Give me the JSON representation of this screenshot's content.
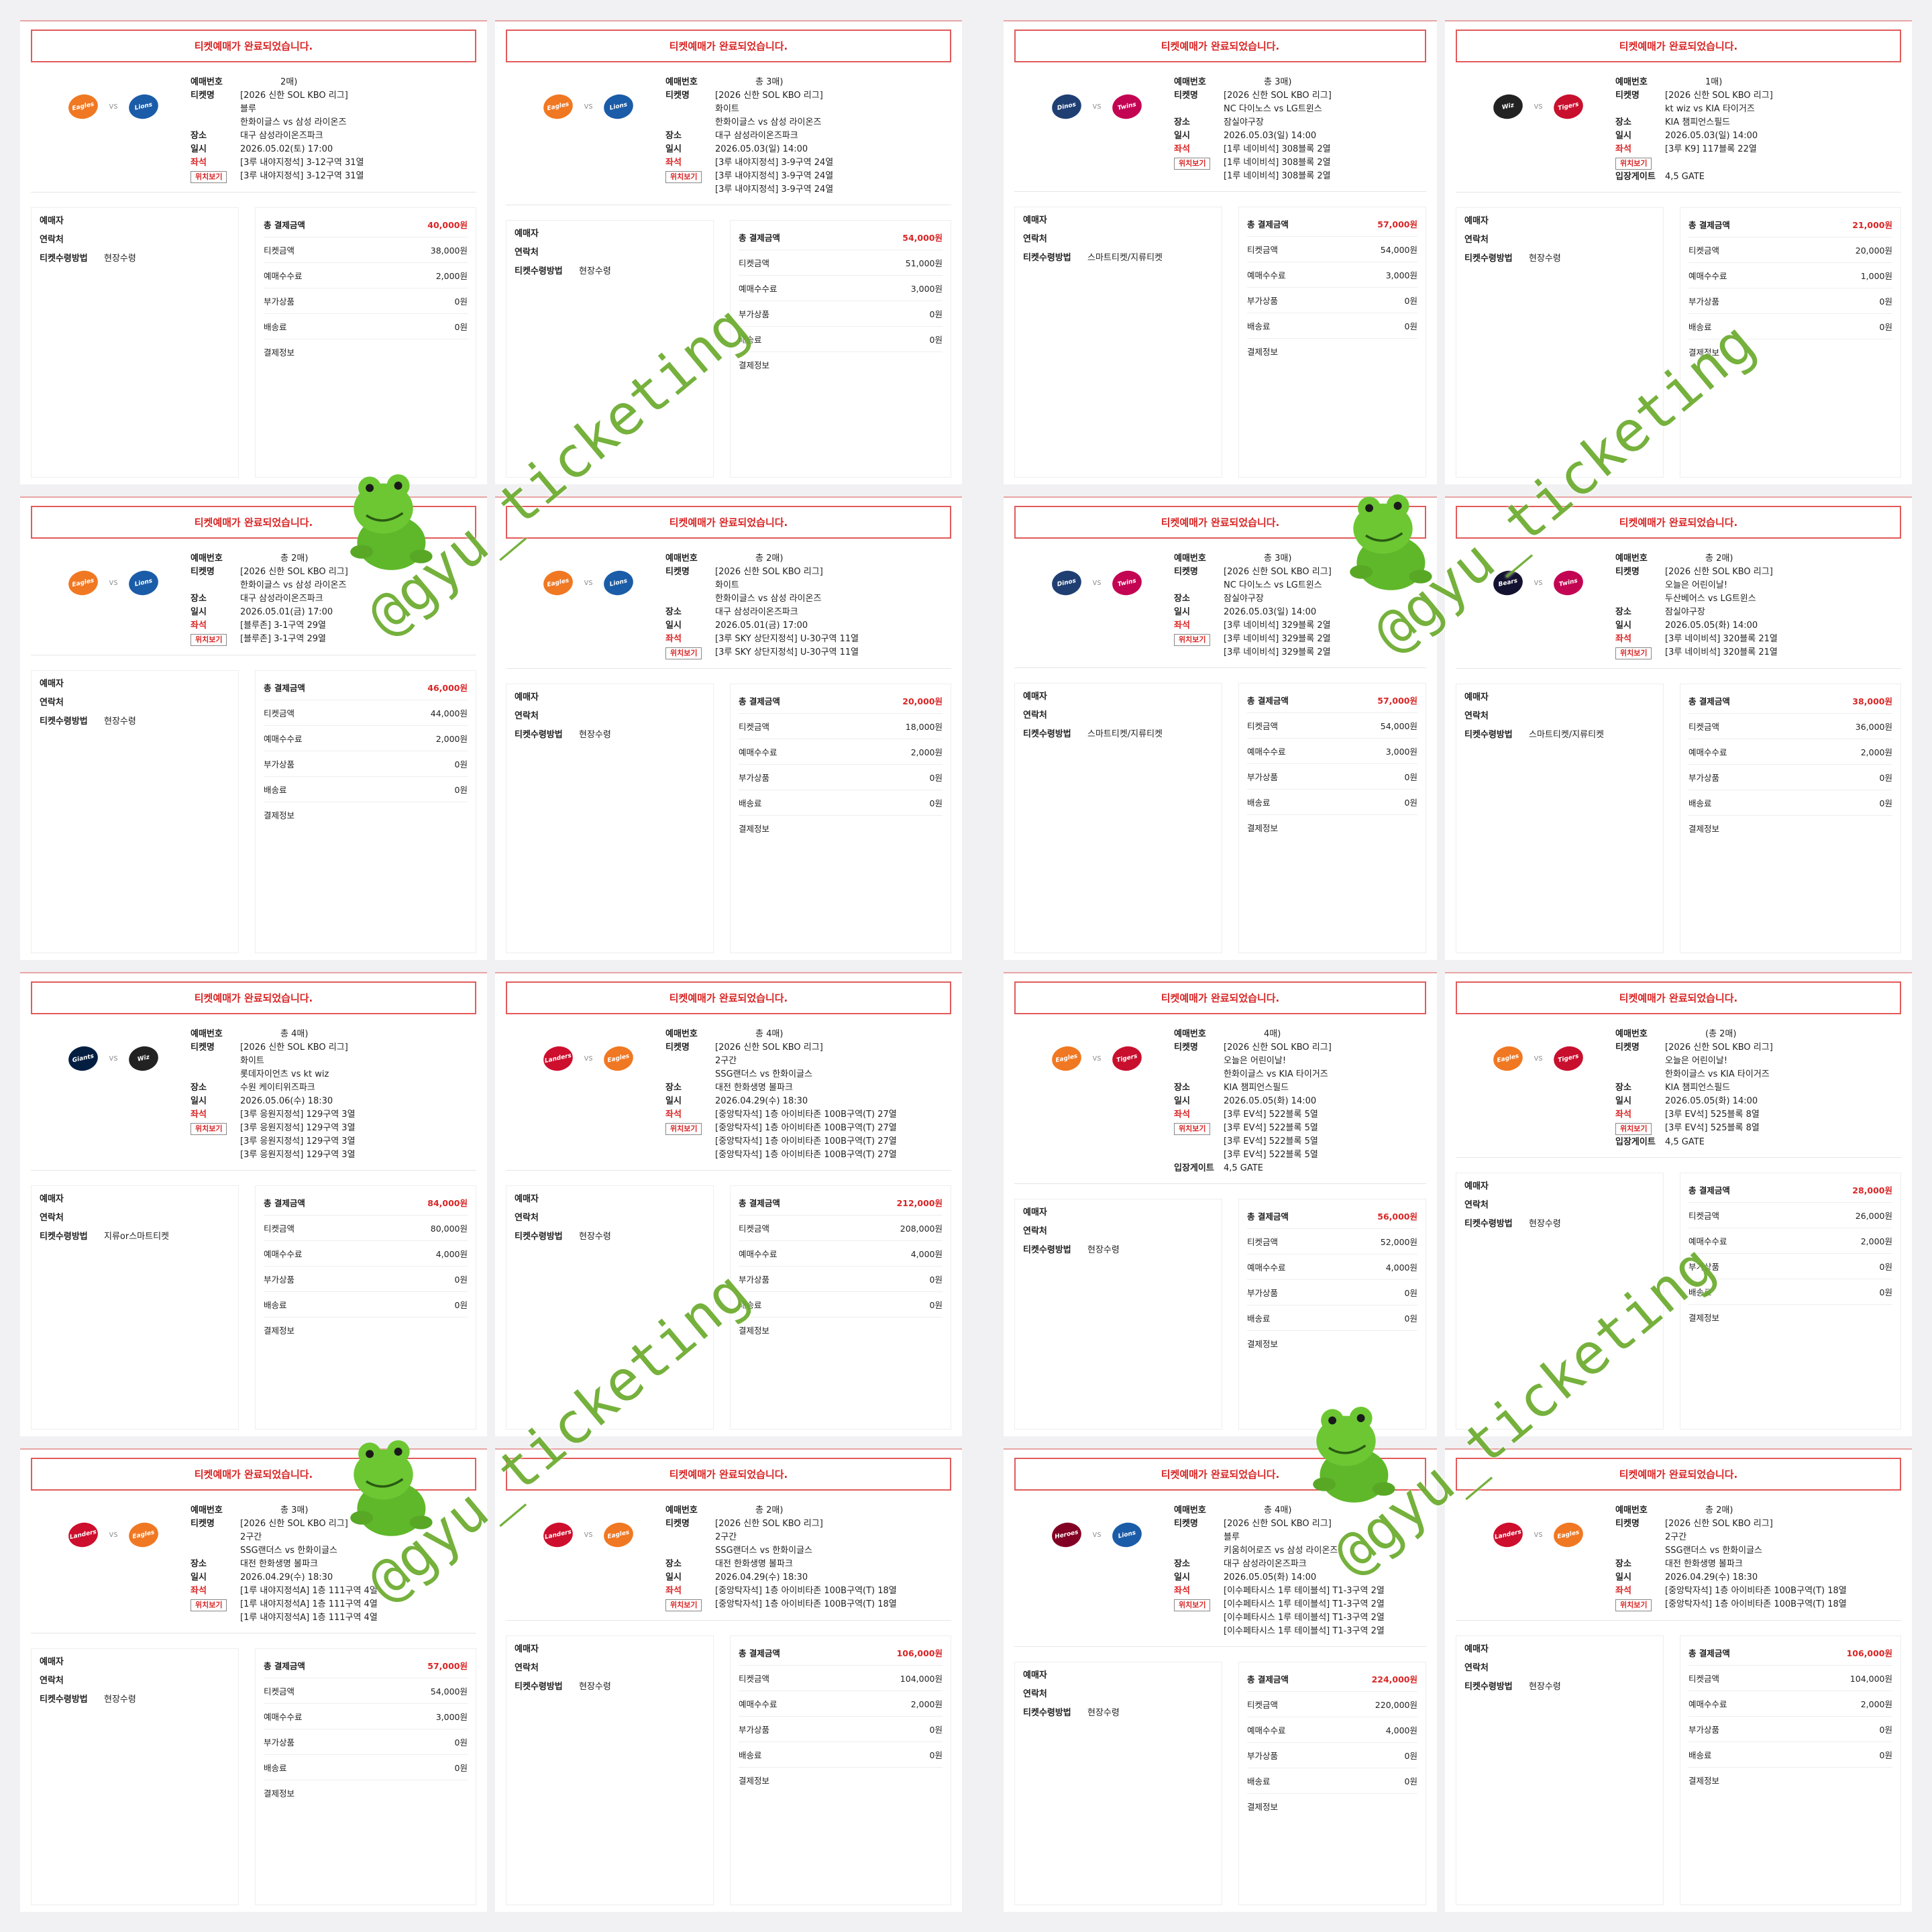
{
  "labels": {
    "banner": "티켓예매가 완료되었습니다.",
    "booking_no": "예매번호",
    "ticket_name": "티켓명",
    "venue": "장소",
    "datetime": "일시",
    "seat": "좌석",
    "locate": "위치보기",
    "gate": "입장게이트",
    "booker": "예매자",
    "contact": "연락처",
    "receive": "티켓수령방법",
    "total": "총 결제금액",
    "ticket_price": "티켓금액",
    "fee": "예매수수료",
    "addon": "부가상품",
    "shipping": "배송료",
    "payinfo": "결제정보",
    "vs": "vs"
  },
  "watermark": "@gyu_ticketing",
  "colors": {
    "accent": "#d92525",
    "watermark": "#6aab2c"
  },
  "tickets": [
    {
      "home": "Eagles",
      "away": "Lions",
      "home_color": "#f07822",
      "away_color": "#1a5ca8",
      "booking": "2매)",
      "title": [
        "[2026 신한 SOL KBO 리그]",
        "블루",
        "한화이글스 vs 삼성 라이온즈"
      ],
      "venue": "대구 삼성라이온즈파크",
      "datetime": "2026.05.02(토) 17:00",
      "seats": [
        "[3루 내야지정석] 3-12구역 31열",
        "[3루 내야지정석] 3-12구역 31열"
      ],
      "gate": "",
      "receive": "현장수령",
      "total": "40,000원",
      "ticket": "38,000원",
      "fee": "2,000원",
      "addon": "0원",
      "ship": "0원"
    },
    {
      "home": "Eagles",
      "away": "Lions",
      "home_color": "#f07822",
      "away_color": "#1a5ca8",
      "booking": "총 3매)",
      "title": [
        "[2026 신한 SOL KBO 리그]",
        "화이트",
        "한화이글스 vs 삼성 라이온즈"
      ],
      "venue": "대구 삼성라이온즈파크",
      "datetime": "2026.05.03(일) 14:00",
      "seats": [
        "[3루 내야지정석] 3-9구역 24열",
        "[3루 내야지정석] 3-9구역 24열",
        "[3루 내야지정석] 3-9구역 24열"
      ],
      "gate": "",
      "receive": "현장수령",
      "total": "54,000원",
      "ticket": "51,000원",
      "fee": "3,000원",
      "addon": "0원",
      "ship": "0원"
    },
    {
      "home": "Dinos",
      "away": "Twins",
      "home_color": "#1f3f73",
      "away_color": "#c30452",
      "booking": "총 3매)",
      "title": [
        "[2026 신한 SOL KBO 리그]",
        "NC 다이노스 vs LG트윈스"
      ],
      "venue": "잠실야구장",
      "datetime": "2026.05.03(일) 14:00",
      "seats": [
        "[1루 네이비석] 308블록 2열",
        "[1루 네이비석] 308블록 2열",
        "[1루 네이비석] 308블록 2열"
      ],
      "gate": "",
      "receive": "스마트티켓/지류티켓",
      "total": "57,000원",
      "ticket": "54,000원",
      "fee": "3,000원",
      "addon": "0원",
      "ship": "0원"
    },
    {
      "home": "Wiz",
      "away": "Tigers",
      "home_color": "#222222",
      "away_color": "#c8102e",
      "booking": "1매)",
      "title": [
        "[2026 신한 SOL KBO 리그]",
        "kt wiz vs KIA 타이거즈"
      ],
      "venue": "KIA 챔피언스필드",
      "datetime": "2026.05.03(일) 14:00",
      "seats": [
        "[3루 K9] 117블록 22열"
      ],
      "gate": "4,5 GATE",
      "receive": "현장수령",
      "total": "21,000원",
      "ticket": "20,000원",
      "fee": "1,000원",
      "addon": "0원",
      "ship": "0원"
    },
    {
      "home": "Eagles",
      "away": "Lions",
      "home_color": "#f07822",
      "away_color": "#1a5ca8",
      "booking": "총 2매)",
      "title": [
        "[2026 신한 SOL KBO 리그]",
        "한화이글스 vs 삼성 라이온즈"
      ],
      "venue": "대구 삼성라이온즈파크",
      "datetime": "2026.05.01(금) 17:00",
      "seats": [
        "[블루존] 3-1구역 29열",
        "[블루존] 3-1구역 29열"
      ],
      "gate": "",
      "receive": "현장수령",
      "total": "46,000원",
      "ticket": "44,000원",
      "fee": "2,000원",
      "addon": "0원",
      "ship": "0원"
    },
    {
      "home": "Eagles",
      "away": "Lions",
      "home_color": "#f07822",
      "away_color": "#1a5ca8",
      "booking": "총 2매)",
      "title": [
        "[2026 신한 SOL KBO 리그]",
        "화이트",
        "한화이글스 vs 삼성 라이온즈"
      ],
      "venue": "대구 삼성라이온즈파크",
      "datetime": "2026.05.01(금) 17:00",
      "seats": [
        "[3루 SKY 상단지정석] U-30구역 11열",
        "[3루 SKY 상단지정석] U-30구역 11열"
      ],
      "gate": "",
      "receive": "현장수령",
      "total": "20,000원",
      "ticket": "18,000원",
      "fee": "2,000원",
      "addon": "0원",
      "ship": "0원"
    },
    {
      "home": "Dinos",
      "away": "Twins",
      "home_color": "#1f3f73",
      "away_color": "#c30452",
      "booking": "총 3매)",
      "title": [
        "[2026 신한 SOL KBO 리그]",
        "NC 다이노스 vs LG트윈스"
      ],
      "venue": "잠실야구장",
      "datetime": "2026.05.03(일) 14:00",
      "seats": [
        "[3루 네이비석] 329블록 2열",
        "[3루 네이비석] 329블록 2열",
        "[3루 네이비석] 329블록 2열"
      ],
      "gate": "",
      "receive": "스마트티켓/지류티켓",
      "total": "57,000원",
      "ticket": "54,000원",
      "fee": "3,000원",
      "addon": "0원",
      "ship": "0원"
    },
    {
      "home": "Bears",
      "away": "Twins",
      "home_color": "#131230",
      "away_color": "#c30452",
      "booking": "총 2매)",
      "title": [
        "[2026 신한 SOL KBO 리그]",
        "오늘은 어린이날!",
        "두산베어스 vs LG트윈스"
      ],
      "venue": "잠실야구장",
      "datetime": "2026.05.05(화) 14:00",
      "seats": [
        "[3루 네이비석] 320블록 21열",
        "[3루 네이비석] 320블록 21열"
      ],
      "gate": "",
      "receive": "스마트티켓/지류티켓",
      "total": "38,000원",
      "ticket": "36,000원",
      "fee": "2,000원",
      "addon": "0원",
      "ship": "0원"
    },
    {
      "home": "Giants",
      "away": "Wiz",
      "home_color": "#041e42",
      "away_color": "#222222",
      "booking": "총 4매)",
      "title": [
        "[2026 신한 SOL KBO 리그]",
        "화이트",
        "롯데자이언츠 vs kt wiz"
      ],
      "venue": "수원 케이티위즈파크",
      "datetime": "2026.05.06(수) 18:30",
      "seats": [
        "[3루 응원지정석] 129구역 3열",
        "[3루 응원지정석] 129구역 3열",
        "[3루 응원지정석] 129구역 3열",
        "[3루 응원지정석] 129구역 3열"
      ],
      "gate": "",
      "receive": "지류or스마트티켓",
      "total": "84,000원",
      "ticket": "80,000원",
      "fee": "4,000원",
      "addon": "0원",
      "ship": "0원"
    },
    {
      "home": "Landers",
      "away": "Eagles",
      "home_color": "#ce0e2d",
      "away_color": "#f07822",
      "booking": "총 4매)",
      "title": [
        "[2026 신한 SOL KBO 리그]",
        "2구간",
        "SSG랜더스 vs 한화이글스"
      ],
      "venue": "대전 한화생명 볼파크",
      "datetime": "2026.04.29(수) 18:30",
      "seats": [
        "[중앙탁자석] 1층 아이비타존 100B구역(T) 27열",
        "[중앙탁자석] 1층 아이비타존 100B구역(T) 27열",
        "[중앙탁자석] 1층 아이비타존 100B구역(T) 27열",
        "[중앙탁자석] 1층 아이비타존 100B구역(T) 27열"
      ],
      "gate": "",
      "receive": "현장수령",
      "total": "212,000원",
      "ticket": "208,000원",
      "fee": "4,000원",
      "addon": "0원",
      "ship": "0원"
    },
    {
      "home": "Eagles",
      "away": "Tigers",
      "home_color": "#f07822",
      "away_color": "#c8102e",
      "booking": "4매)",
      "title": [
        "[2026 신한 SOL KBO 리그]",
        "오늘은 어린이날!",
        "한화이글스 vs KIA 타이거즈"
      ],
      "venue": "KIA 챔피언스필드",
      "datetime": "2026.05.05(화) 14:00",
      "seats": [
        "[3루 EV석] 522블록 5열",
        "[3루 EV석] 522블록 5열",
        "[3루 EV석] 522블록 5열",
        "[3루 EV석] 522블록 5열"
      ],
      "gate": "4,5 GATE",
      "receive": "현장수령",
      "total": "56,000원",
      "ticket": "52,000원",
      "fee": "4,000원",
      "addon": "0원",
      "ship": "0원"
    },
    {
      "home": "Eagles",
      "away": "Tigers",
      "home_color": "#f07822",
      "away_color": "#c8102e",
      "booking": "(총 2매)",
      "title": [
        "[2026 신한 SOL KBO 리그]",
        "오늘은 어린이날!",
        "한화이글스 vs KIA 타이거즈"
      ],
      "venue": "KIA 챔피언스필드",
      "datetime": "2026.05.05(화) 14:00",
      "seats": [
        "[3루 EV석] 525블록 8열",
        "[3루 EV석] 525블록 8열"
      ],
      "gate": "4,5 GATE",
      "receive": "현장수령",
      "total": "28,000원",
      "ticket": "26,000원",
      "fee": "2,000원",
      "addon": "0원",
      "ship": "0원"
    },
    {
      "home": "Landers",
      "away": "Eagles",
      "home_color": "#ce0e2d",
      "away_color": "#f07822",
      "booking": "총 3매)",
      "title": [
        "[2026 신한 SOL KBO 리그]",
        "2구간",
        "SSG랜더스 vs 한화이글스"
      ],
      "venue": "대전 한화생명 볼파크",
      "datetime": "2026.04.29(수) 18:30",
      "seats": [
        "[1루 내야지정석A] 1층 111구역 4열",
        "[1루 내야지정석A] 1층 111구역 4열",
        "[1루 내야지정석A] 1층 111구역 4열"
      ],
      "gate": "",
      "receive": "현장수령",
      "total": "57,000원",
      "ticket": "54,000원",
      "fee": "3,000원",
      "addon": "0원",
      "ship": "0원"
    },
    {
      "home": "Landers",
      "away": "Eagles",
      "home_color": "#ce0e2d",
      "away_color": "#f07822",
      "booking": "총 2매)",
      "title": [
        "[2026 신한 SOL KBO 리그]",
        "2구간",
        "SSG랜더스 vs 한화이글스"
      ],
      "venue": "대전 한화생명 볼파크",
      "datetime": "2026.04.29(수) 18:30",
      "seats": [
        "[중앙탁자석] 1층 아이비타존 100B구역(T) 18열",
        "[중앙탁자석] 1층 아이비타존 100B구역(T) 18열"
      ],
      "gate": "",
      "receive": "현장수령",
      "total": "106,000원",
      "ticket": "104,000원",
      "fee": "2,000원",
      "addon": "0원",
      "ship": "0원"
    },
    {
      "home": "Heroes",
      "away": "Lions",
      "home_color": "#820024",
      "away_color": "#1a5ca8",
      "booking": "총 4매)",
      "title": [
        "[2026 신한 SOL KBO 리그]",
        "블루",
        "키움히어로즈 vs 삼성 라이온즈"
      ],
      "venue": "대구 삼성라이온즈파크",
      "datetime": "2026.05.05(화) 14:00",
      "seats": [
        "[이수페타시스 1루 테이블석] T1-3구역 2열",
        "[이수페타시스 1루 테이블석] T1-3구역 2열",
        "[이수페타시스 1루 테이블석] T1-3구역 2열",
        "[이수페타시스 1루 테이블석] T1-3구역 2열"
      ],
      "gate": "",
      "receive": "현장수령",
      "total": "224,000원",
      "ticket": "220,000원",
      "fee": "4,000원",
      "addon": "0원",
      "ship": "0원"
    },
    {
      "home": "Landers",
      "away": "Eagles",
      "home_color": "#ce0e2d",
      "away_color": "#f07822",
      "booking": "총 2매)",
      "title": [
        "[2026 신한 SOL KBO 리그]",
        "2구간",
        "SSG랜더스 vs 한화이글스"
      ],
      "venue": "대전 한화생명 볼파크",
      "datetime": "2026.04.29(수) 18:30",
      "seats": [
        "[중앙탁자석] 1층 아이비타존 100B구역(T) 18열",
        "[중앙탁자석] 1층 아이비타존 100B구역(T) 18열"
      ],
      "gate": "",
      "receive": "현장수령",
      "total": "106,000원",
      "ticket": "104,000원",
      "fee": "2,000원",
      "addon": "0원",
      "ship": "0원"
    }
  ]
}
